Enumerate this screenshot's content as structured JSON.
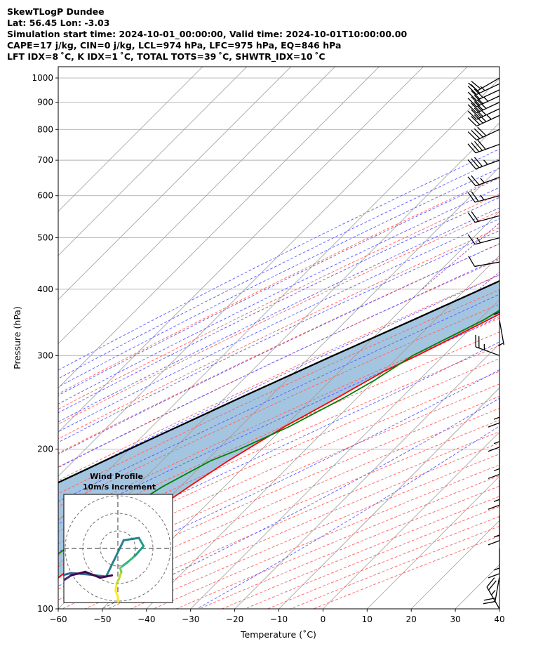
{
  "header": {
    "line1": "SkewTLogP Dundee",
    "line2": "Lat: 56.45   Lon: -3.03",
    "line3": "Simulation start time: 2024-10-01_00:00:00, Valid time: 2024-10-01T10:00:00.00",
    "line4": "CAPE=17 j/kg, CIN=0 j/kg, LCL=974 hPa, LFC=975 hPa, EQ=846 hPa",
    "line5": "LFT IDX=8 ˚C, K IDX=1 ˚C, TOTAL TOTS=39 ˚C, SHWTR_IDX=10 ˚C"
  },
  "chart_data": {
    "type": "line",
    "xlabel": "Temperature (˚C)",
    "ylabel": "Pressure (hPa)",
    "xlim": [
      -60,
      40
    ],
    "ylim": [
      1050,
      100
    ],
    "y_scale": "log",
    "x_ticks": [
      -60,
      -50,
      -40,
      -30,
      -20,
      -10,
      0,
      10,
      20,
      30,
      40
    ],
    "x_tick_labels": [
      "−60",
      "−50",
      "−40",
      "−30",
      "−20",
      "−10",
      "0",
      "10",
      "20",
      "30",
      "40"
    ],
    "y_ticks": [
      1000,
      900,
      800,
      700,
      600,
      500,
      400,
      300,
      200,
      100
    ],
    "y_tick_labels": [
      "1000",
      "900",
      "800",
      "700",
      "600",
      "500",
      "400",
      "300",
      "200",
      "100"
    ],
    "grid": true,
    "colors": {
      "temperature": "#ff0000",
      "dewpoint": "#008000",
      "parcel": "#000000",
      "cape_fill": "#a3c5e0",
      "dry_adiabats": "#ff6060",
      "moist_adiabats": "#5a5aff",
      "mixing_ratio": "#9940c0",
      "isotherms": "#9e9e9e"
    },
    "series": [
      {
        "key": "temperature",
        "pressure": [
          1000,
          950,
          900,
          850,
          800,
          750,
          700,
          650,
          600,
          550,
          500,
          450,
          400,
          350,
          300,
          280,
          250,
          220,
          190,
          170,
          150,
          130,
          115,
          105,
          100
        ],
        "temperature": [
          10.2,
          8.6,
          7.8,
          8.0,
          7.0,
          4.3,
          1.5,
          -1.6,
          -4.5,
          -8.0,
          -12.0,
          -16.2,
          -21.5,
          -28.0,
          -36.0,
          -40.0,
          -44.5,
          -50.0,
          -55.0,
          -58.0,
          -61.0,
          -64.5,
          -67.0,
          -68.0,
          -68.5
        ]
      },
      {
        "key": "dewpoint",
        "pressure": [
          1000,
          970,
          900,
          850,
          800,
          760,
          720,
          700,
          650,
          600,
          550,
          500,
          450,
          400,
          350,
          300,
          270,
          250,
          220,
          200,
          190,
          170,
          150,
          120,
          100
        ],
        "temperature": [
          9.5,
          8.7,
          5.5,
          1.5,
          -6.0,
          -14.0,
          -17.0,
          -16.0,
          -10.5,
          -6.5,
          -5.5,
          -11.5,
          -17.0,
          -24.5,
          -29.0,
          -37.0,
          -40.0,
          -43.0,
          -49.0,
          -55.0,
          -59.0,
          -64.0,
          -68.0,
          -74.0,
          -79.0
        ]
      },
      {
        "key": "parcel",
        "pressure": [
          1010,
          1000,
          975,
          950,
          900,
          850,
          800,
          750,
          700,
          650,
          600,
          550,
          500,
          450,
          400,
          350,
          300,
          250,
          200,
          150,
          120,
          100
        ],
        "temperature": [
          11.5,
          10.0,
          9.0,
          8.0,
          6.0,
          4.5,
          2.5,
          0.0,
          -3.5,
          -7.5,
          -12.0,
          -17.0,
          -22.5,
          -29.0,
          -36.5,
          -45.0,
          -55.0,
          -66.5,
          -80.0,
          -97.0,
          -111.0,
          -122.0
        ]
      }
    ],
    "cape_region": {
      "pressure_top": 100,
      "pressure_bottom": 980
    },
    "wind_barbs": {
      "pressure": [
        1000,
        975,
        950,
        925,
        900,
        875,
        850,
        800,
        750,
        700,
        650,
        600,
        550,
        500,
        450,
        400,
        350,
        300,
        250,
        225,
        200,
        175,
        150,
        130,
        115,
        100
      ],
      "speed_knots": [
        20,
        25,
        30,
        35,
        40,
        40,
        45,
        40,
        40,
        35,
        25,
        25,
        20,
        15,
        10,
        5,
        5,
        25,
        15,
        15,
        15,
        15,
        15,
        15,
        20,
        25
      ],
      "direction_deg": [
        240,
        245,
        245,
        245,
        245,
        245,
        245,
        245,
        250,
        250,
        250,
        255,
        255,
        255,
        260,
        180,
        170,
        290,
        180,
        180,
        180,
        180,
        180,
        180,
        190,
        330
      ]
    },
    "hodograph": {
      "title_line1": "Wind Profile",
      "title_line2": "10m/s increment",
      "rings": 3,
      "u": [
        0,
        0,
        -0.2,
        -0.1,
        0.1,
        0.3,
        0.2,
        0.4,
        0.8,
        1.5,
        2.2,
        1.8,
        0.5,
        -1.0,
        -2.8,
        -4.0,
        -5.5,
        -6.3,
        -6.0,
        -5.5,
        -4.0,
        -2.8,
        -1.5,
        -0.5
      ],
      "v": [
        -4.6,
        -4.1,
        -3.6,
        -3.0,
        -2.6,
        -2.0,
        -1.7,
        -1.5,
        -1.2,
        -0.6,
        0.2,
        0.9,
        0.7,
        -2.4,
        -2.2,
        -2.1,
        -2.5,
        -2.0,
        -3.2,
        -3.3,
        -2.3,
        -2.0,
        -2.5,
        -2.3
      ]
    }
  }
}
